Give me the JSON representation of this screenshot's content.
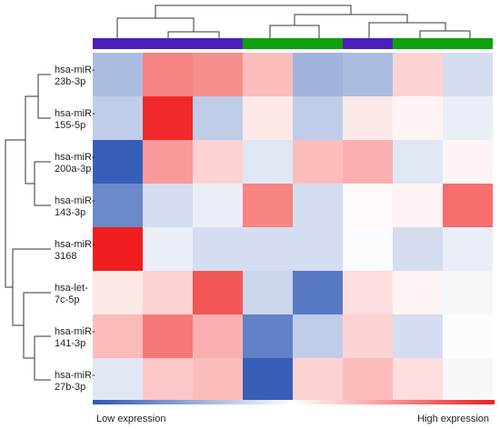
{
  "chart_data": {
    "type": "heatmap",
    "title": "",
    "rows": [
      "hsa-miR-23b-3p",
      "hsa-miR-155-5p",
      "hsa-miR-200a-3p",
      "hsa-miR-143-3p",
      "hsa-miR-3168",
      "hsa-let-7c-5p",
      "hsa-miR-141-3p",
      "hsa-miR-27b-3p"
    ],
    "row_label_lines": [
      [
        "hsa-miR-",
        "23b-3p"
      ],
      [
        "hsa-miR-",
        "155-5p"
      ],
      [
        "hsa-miR-",
        "200a-3p"
      ],
      [
        "hsa-miR-",
        "143-3p"
      ],
      [
        "hsa-miR-",
        "3168"
      ],
      [
        "hsa-let-",
        "7c-5p"
      ],
      [
        "hsa-miR-",
        "141-3p"
      ],
      [
        "hsa-miR-",
        "27b-3p"
      ]
    ],
    "column_groups": [
      "blue",
      "blue",
      "blue",
      "green",
      "green",
      "blue",
      "green",
      "green"
    ],
    "group_colors": {
      "blue": "#4a1fb8",
      "green": "#10a010"
    },
    "values": [
      [
        -0.4,
        0.55,
        0.5,
        0.3,
        -0.45,
        -0.4,
        0.2,
        -0.2
      ],
      [
        -0.3,
        0.95,
        -0.3,
        0.1,
        -0.3,
        0.1,
        0.05,
        -0.1
      ],
      [
        -0.95,
        0.45,
        0.2,
        -0.15,
        0.3,
        0.35,
        -0.15,
        0.05
      ],
      [
        -0.7,
        -0.2,
        -0.1,
        0.55,
        -0.2,
        0.03,
        0.05,
        0.65
      ],
      [
        1.0,
        -0.1,
        -0.2,
        -0.2,
        -0.2,
        -0.03,
        -0.2,
        -0.1
      ],
      [
        0.1,
        0.2,
        0.75,
        -0.25,
        -0.8,
        0.15,
        0.05,
        -0.05
      ],
      [
        0.3,
        0.6,
        0.35,
        -0.75,
        -0.3,
        0.2,
        -0.2,
        -0.02
      ],
      [
        -0.15,
        0.25,
        0.3,
        -0.95,
        0.2,
        0.3,
        0.15,
        -0.05
      ]
    ],
    "color_scale": {
      "low": "#2d57b3",
      "mid": "#ffffff",
      "high": "#f01e1e",
      "range": [
        -1,
        1
      ]
    },
    "legend": {
      "low_label": "Low expression",
      "high_label": "High expression",
      "position": "bottom"
    }
  }
}
